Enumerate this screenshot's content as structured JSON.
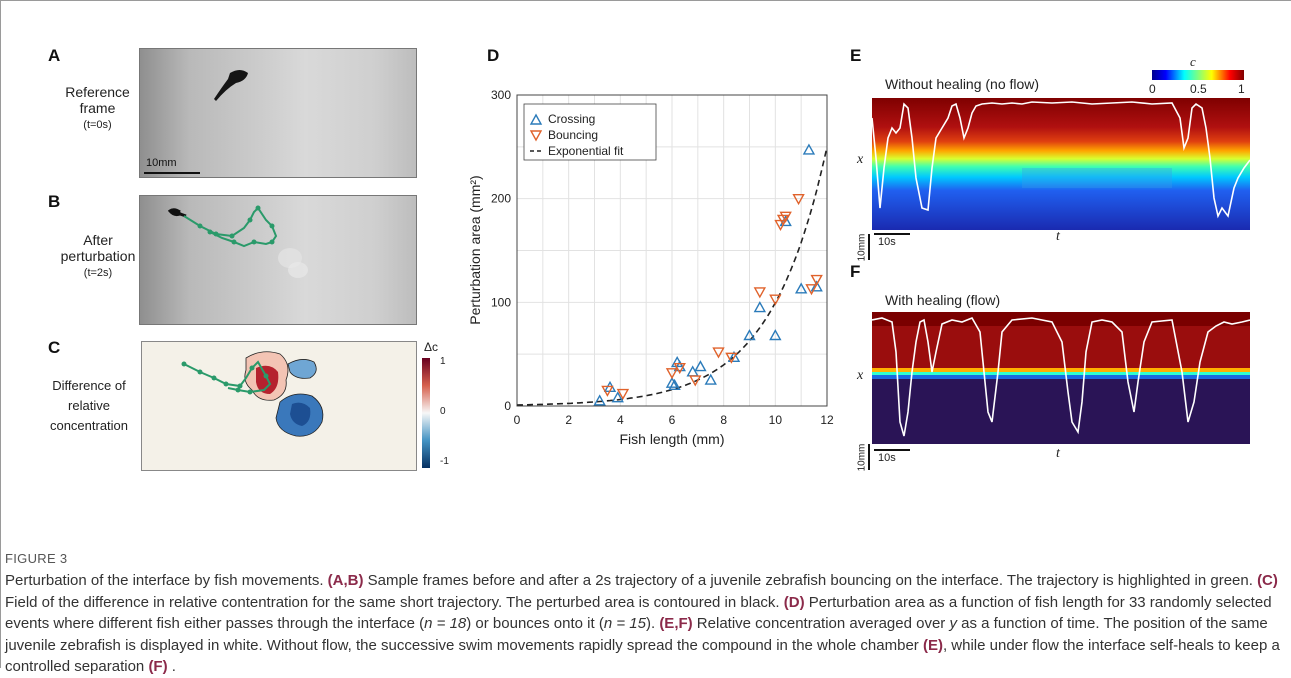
{
  "panels": {
    "A": {
      "letter": "A",
      "label_line1": "Reference",
      "label_line2": "frame",
      "time": "(t=0s)",
      "scale_bar": "10mm"
    },
    "B": {
      "letter": "B",
      "label_line1": "After",
      "label_line2": "perturbation",
      "time": "(t=2s)"
    },
    "C": {
      "letter": "C",
      "label_line1": "Difference of",
      "label_line2": "relative",
      "label_line3": "concentration",
      "colorbar_title": "Δc",
      "colorbar_ticks": [
        "1",
        "0",
        "-1"
      ]
    },
    "D": {
      "letter": "D"
    },
    "E": {
      "letter": "E",
      "title": "Without healing (no flow)",
      "xlabel": "t",
      "ylabel": "x",
      "scale_y": "10mm",
      "scale_t": "10s",
      "colorbar_title": "c",
      "colorbar_ticks": [
        "0",
        "0.5",
        "1"
      ]
    },
    "F": {
      "letter": "F",
      "title": "With healing (flow)",
      "xlabel": "t",
      "ylabel": "x",
      "scale_y": "10mm",
      "scale_t": "10s"
    }
  },
  "chart_data": {
    "type": "scatter",
    "xlabel": "Fish length (mm)",
    "ylabel": "Perturbation area (mm²)",
    "xlim": [
      0,
      12
    ],
    "ylim": [
      0,
      300
    ],
    "xticks": [
      "0",
      "2",
      "4",
      "6",
      "8",
      "10",
      "12"
    ],
    "yticks": [
      "0",
      "100",
      "200",
      "300"
    ],
    "grid": true,
    "legend_position": "top-left",
    "series": [
      {
        "name": "Crossing",
        "marker": "triangle-up",
        "color": "#2b7bba",
        "points": [
          [
            3.2,
            5
          ],
          [
            3.6,
            18
          ],
          [
            3.9,
            8
          ],
          [
            6.0,
            22
          ],
          [
            6.2,
            42
          ],
          [
            6.8,
            33
          ],
          [
            7.1,
            38
          ],
          [
            7.5,
            25
          ],
          [
            8.4,
            47
          ],
          [
            9.0,
            68
          ],
          [
            9.4,
            95
          ],
          [
            10.0,
            68
          ],
          [
            10.4,
            178
          ],
          [
            11.0,
            113
          ],
          [
            11.3,
            247
          ],
          [
            11.6,
            115
          ],
          [
            6.1,
            20
          ],
          [
            6.3,
            38
          ]
        ]
      },
      {
        "name": "Bouncing",
        "marker": "triangle-down",
        "color": "#e0622b",
        "points": [
          [
            3.5,
            15
          ],
          [
            4.1,
            12
          ],
          [
            6.0,
            32
          ],
          [
            6.3,
            37
          ],
          [
            6.9,
            25
          ],
          [
            7.8,
            52
          ],
          [
            8.3,
            47
          ],
          [
            9.4,
            110
          ],
          [
            10.0,
            103
          ],
          [
            10.2,
            175
          ],
          [
            10.4,
            183
          ],
          [
            10.9,
            200
          ],
          [
            11.4,
            113
          ],
          [
            11.6,
            122
          ],
          [
            10.3,
            180
          ]
        ]
      },
      {
        "name": "Exponential fit",
        "style": "dashed",
        "color": "#222222"
      }
    ]
  },
  "caption": {
    "figure_label": "FIGURE 3",
    "p1": "Perturbation of the interface by fish movements. ",
    "ref_ab": "(A,B)",
    "p2": " Sample frames before and after a 2s trajectory of a juvenile zebrafish bouncing on the interface. The trajectory is highlighted in green. ",
    "ref_c": "(C)",
    "p3": " Field of the difference in relative contentration for the same short trajectory. The perturbed area is contoured in black. ",
    "ref_d": "(D)",
    "p4": " Perturbation area as a function of fish length for 33 randomly selected events where different fish either passes through the interface (",
    "n1": "n = 18",
    "p5": ") or bounces onto it (",
    "n2": "n = 15",
    "p6": "). ",
    "ref_ef": "(E,F)",
    "p7": " Relative concentration averaged over ",
    "yvar": "y",
    "p8": " as a function of time. The position of the same juvenile zebrafish is displayed in white. Without flow, the successive swim movements rapidly spread the compound in the whole chamber ",
    "ref_e": "(E)",
    "p9": ", while under flow the interface self-heals to keep a controlled separation ",
    "ref_f": "(F)",
    "p10": " ."
  }
}
